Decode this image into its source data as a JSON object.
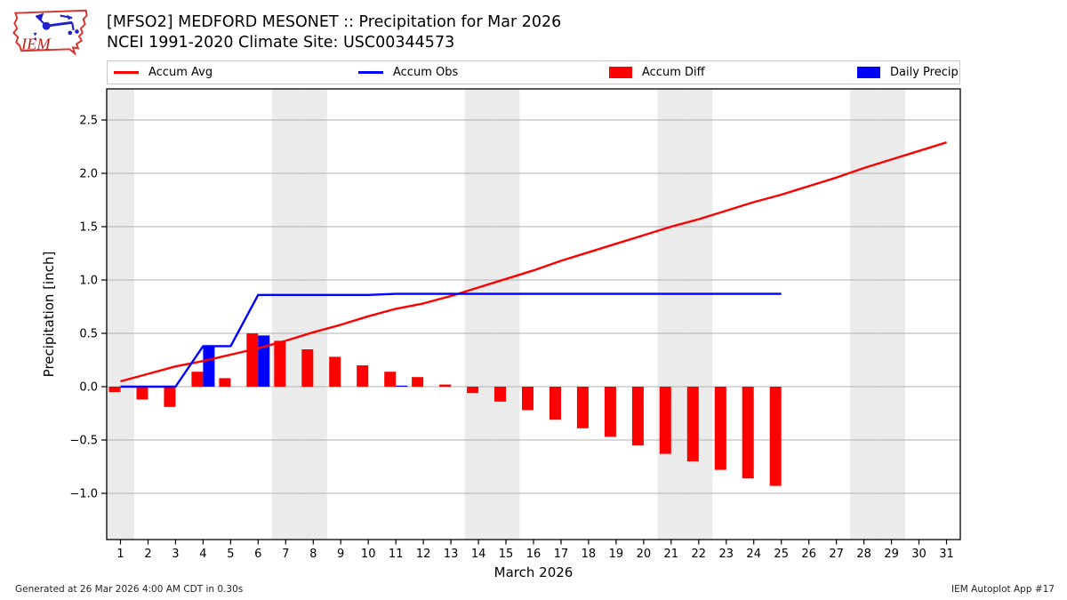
{
  "header": {
    "title": "[MFSO2] MEDFORD MESONET :: Precipitation for Mar 2026",
    "subtitle": "NCEI 1991-2020 Climate Site: USC00344573",
    "logo_text": "IEM"
  },
  "footer": {
    "generated": "Generated at 26 Mar 2026 4:00 AM CDT in 0.30s",
    "app": "IEM Autoplot App #17"
  },
  "chart_data": {
    "type": "line+bar",
    "title": "[MFSO2] MEDFORD MESONET :: Precipitation for Mar 2026",
    "subtitle": "NCEI 1991-2020 Climate Site: USC00344573",
    "xlabel": "March 2026",
    "ylabel": "Precipitation [inch]",
    "ylim": [
      -1.433,
      2.792
    ],
    "yticks": [
      2.5,
      2.0,
      1.5,
      1.0,
      0.5,
      0.0,
      -0.5,
      -1.0
    ],
    "xticks": [
      1,
      2,
      3,
      4,
      5,
      6,
      7,
      8,
      9,
      10,
      11,
      12,
      13,
      14,
      15,
      16,
      17,
      18,
      19,
      20,
      21,
      22,
      23,
      24,
      25,
      26,
      27,
      28,
      29,
      30,
      31
    ],
    "grid": {
      "color": "#b0b0b0",
      "horizontal_only": true
    },
    "weekend_shading": {
      "days": [
        1,
        7,
        8,
        14,
        15,
        21,
        22,
        28,
        29
      ],
      "color": "#ebebeb"
    },
    "legend_items": [
      {
        "label": "Accum Avg",
        "color": "#ff0000",
        "swatch": "line"
      },
      {
        "label": "Accum Obs",
        "color": "#0000ff",
        "swatch": "line"
      },
      {
        "label": "Accum Diff",
        "color": "#ff0000",
        "swatch": "patch"
      },
      {
        "label": "Daily Precip",
        "color": "#0000ff",
        "swatch": "patch"
      }
    ],
    "series": [
      {
        "name": "Accum Avg",
        "type": "line",
        "color": "#ff0000",
        "days": [
          1,
          2,
          3,
          4,
          5,
          6,
          7,
          8,
          9,
          10,
          11,
          12,
          13,
          14,
          15,
          16,
          17,
          18,
          19,
          20,
          21,
          22,
          23,
          24,
          25,
          26,
          27,
          28,
          29,
          30,
          31
        ],
        "values": [
          0.05,
          0.12,
          0.19,
          0.24,
          0.3,
          0.36,
          0.43,
          0.51,
          0.58,
          0.66,
          0.73,
          0.78,
          0.85,
          0.93,
          1.01,
          1.09,
          1.18,
          1.26,
          1.34,
          1.42,
          1.5,
          1.57,
          1.65,
          1.73,
          1.8,
          1.88,
          1.96,
          2.05,
          2.13,
          2.21,
          2.29
        ]
      },
      {
        "name": "Accum Obs",
        "type": "line",
        "color": "#0000ff",
        "days": [
          1,
          2,
          3,
          4,
          5,
          6,
          7,
          8,
          9,
          10,
          11,
          12,
          13,
          14,
          15,
          16,
          17,
          18,
          19,
          20,
          21,
          22,
          23,
          24,
          25
        ],
        "values": [
          0.0,
          0.0,
          0.0,
          0.38,
          0.38,
          0.86,
          0.86,
          0.86,
          0.86,
          0.86,
          0.87,
          0.87,
          0.87,
          0.87,
          0.87,
          0.87,
          0.87,
          0.87,
          0.87,
          0.87,
          0.87,
          0.87,
          0.87,
          0.87,
          0.87
        ]
      },
      {
        "name": "Accum Diff",
        "type": "bar",
        "bar_side": "left",
        "color": "#ff0000",
        "days": [
          1,
          2,
          3,
          4,
          5,
          6,
          7,
          8,
          9,
          10,
          11,
          12,
          13,
          14,
          15,
          16,
          17,
          18,
          19,
          20,
          21,
          22,
          23,
          24,
          25
        ],
        "values": [
          -0.05,
          -0.12,
          -0.19,
          0.14,
          0.08,
          0.5,
          0.43,
          0.35,
          0.28,
          0.2,
          0.14,
          0.09,
          0.02,
          -0.06,
          -0.14,
          -0.22,
          -0.31,
          -0.39,
          -0.47,
          -0.55,
          -0.63,
          -0.7,
          -0.78,
          -0.86,
          -0.93
        ]
      },
      {
        "name": "Daily Precip",
        "type": "bar",
        "bar_side": "right",
        "color": "#0000ff",
        "days": [
          4,
          6,
          11
        ],
        "values": [
          0.38,
          0.48,
          0.01
        ]
      }
    ]
  }
}
